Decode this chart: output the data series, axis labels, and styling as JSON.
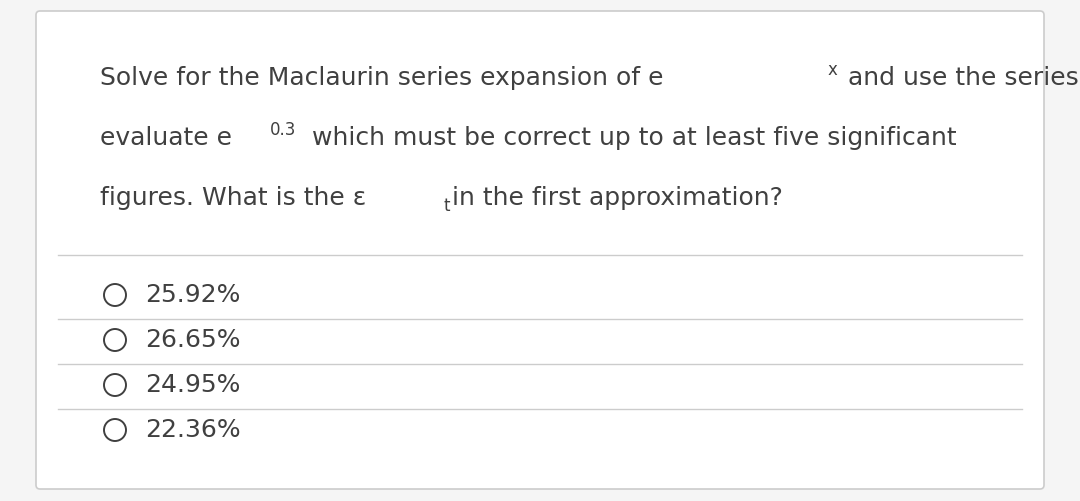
{
  "bg_color": "#f5f5f5",
  "card_color": "#ffffff",
  "border_color": "#cccccc",
  "text_color": "#404040",
  "line_color": "#cccccc",
  "options": [
    "25.92%",
    "26.65%",
    "24.95%",
    "22.36%"
  ],
  "font_size_question": 18,
  "font_size_sup": 12,
  "font_size_options": 18,
  "font_size_sub": 12
}
